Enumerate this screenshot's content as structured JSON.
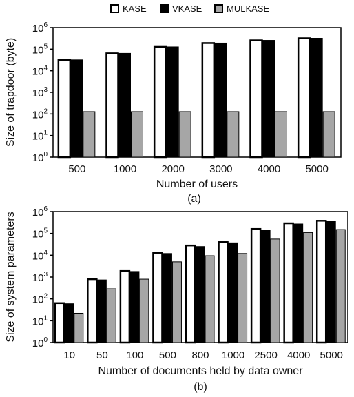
{
  "legend": {
    "items": [
      {
        "label": "KASE",
        "fill": "#ffffff",
        "stroke": "#000000"
      },
      {
        "label": "VKASE",
        "fill": "#000000",
        "stroke": "#000000"
      },
      {
        "label": "MULKASE",
        "fill": "#a6a6a6",
        "stroke": "#000000"
      }
    ]
  },
  "chart_data": [
    {
      "type": "bar",
      "panel_label": "(a)",
      "xlabel": "Number of users",
      "ylabel": "Size of trapdoor (byte)",
      "yscale": "log",
      "ylim": [
        1,
        1000000
      ],
      "yticks": [
        {
          "base": "10",
          "exp": "0"
        },
        {
          "base": "10",
          "exp": "1"
        },
        {
          "base": "10",
          "exp": "2"
        },
        {
          "base": "10",
          "exp": "3"
        },
        {
          "base": "10",
          "exp": "4"
        },
        {
          "base": "10",
          "exp": "5"
        },
        {
          "base": "10",
          "exp": "6"
        }
      ],
      "categories": [
        "500",
        "1000",
        "2000",
        "3000",
        "4000",
        "5000"
      ],
      "series": [
        {
          "name": "KASE",
          "values": [
            32000,
            64000,
            128000,
            192000,
            256000,
            320000
          ]
        },
        {
          "name": "VKASE",
          "values": [
            32000,
            64000,
            128000,
            192000,
            256000,
            320000
          ]
        },
        {
          "name": "MULKASE",
          "values": [
            128,
            128,
            128,
            128,
            128,
            128
          ]
        }
      ],
      "grid": false,
      "legend_position": "top"
    },
    {
      "type": "bar",
      "panel_label": "(b)",
      "xlabel": "Number of documents held by data owner",
      "ylabel": "Size of system parameters",
      "yscale": "log",
      "ylim": [
        1,
        1000000
      ],
      "yticks": [
        {
          "base": "10",
          "exp": "0"
        },
        {
          "base": "10",
          "exp": "1"
        },
        {
          "base": "10",
          "exp": "2"
        },
        {
          "base": "10",
          "exp": "3"
        },
        {
          "base": "10",
          "exp": "4"
        },
        {
          "base": "10",
          "exp": "5"
        },
        {
          "base": "10",
          "exp": "6"
        }
      ],
      "categories": [
        "10",
        "50",
        "100",
        "500",
        "800",
        "1000",
        "2500",
        "4000",
        "5000"
      ],
      "series": [
        {
          "name": "KASE",
          "values": [
            64,
            800,
            1900,
            13000,
            28000,
            40000,
            160000,
            290000,
            380000
          ]
        },
        {
          "name": "VKASE",
          "values": [
            60,
            740,
            1800,
            12000,
            25000,
            37000,
            145000,
            270000,
            350000
          ]
        },
        {
          "name": "MULKASE",
          "values": [
            22,
            290,
            800,
            5000,
            9500,
            12000,
            55000,
            110000,
            150000
          ]
        }
      ],
      "grid": false,
      "legend_position": "top"
    }
  ]
}
